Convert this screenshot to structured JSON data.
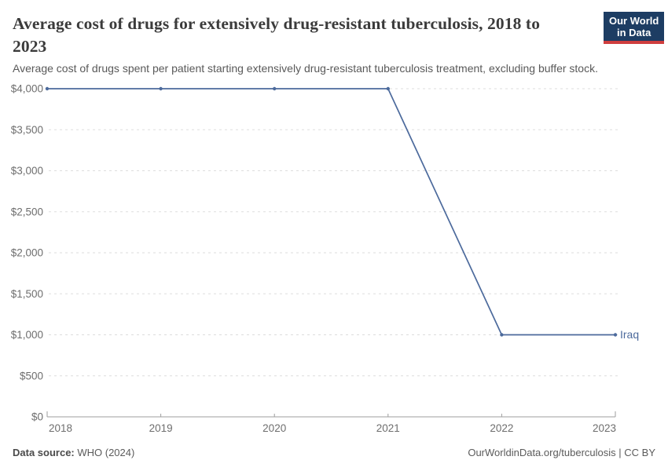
{
  "header": {
    "title": "Average cost of drugs for extensively drug-resistant tuberculosis, 2018 to 2023",
    "subtitle": "Average cost of drugs spent per patient starting extensively drug-resistant tuberculosis treatment, excluding buffer stock.",
    "logo": {
      "line1": "Our World",
      "line2": "in Data"
    }
  },
  "chart_data": {
    "type": "line",
    "title": "Average cost of drugs for extensively drug-resistant tuberculosis, 2018 to 2023",
    "x": [
      2018,
      2019,
      2020,
      2021,
      2022,
      2023
    ],
    "series": [
      {
        "name": "Iraq",
        "color": "#4c6a9c",
        "values": [
          4000,
          4000,
          4000,
          4000,
          1000,
          1000
        ]
      }
    ],
    "ylim": [
      0,
      4000
    ],
    "yticks": [
      {
        "value": 0,
        "label": "$0"
      },
      {
        "value": 500,
        "label": "$500"
      },
      {
        "value": 1000,
        "label": "$1,000"
      },
      {
        "value": 1500,
        "label": "$1,500"
      },
      {
        "value": 2000,
        "label": "$2,000"
      },
      {
        "value": 2500,
        "label": "$2,500"
      },
      {
        "value": 3000,
        "label": "$3,000"
      },
      {
        "value": 3500,
        "label": "$3,500"
      },
      {
        "value": 4000,
        "label": "$4,000"
      }
    ],
    "xlabel": "",
    "ylabel": "",
    "grid": "horizontal-dashed",
    "legend_position": "end-of-line-label"
  },
  "colors": {
    "line": "#4c6a9c",
    "gridline": "#dddddd",
    "axis": "#9e9e9e",
    "tick_text": "#6e6e6e",
    "logo_bg": "#1d3d63",
    "logo_accent": "#cf3e3e"
  },
  "footer": {
    "source_label": "Data source:",
    "source_value": " WHO (2024)",
    "right_text": "OurWorldinData.org/tuberculosis | CC BY"
  }
}
